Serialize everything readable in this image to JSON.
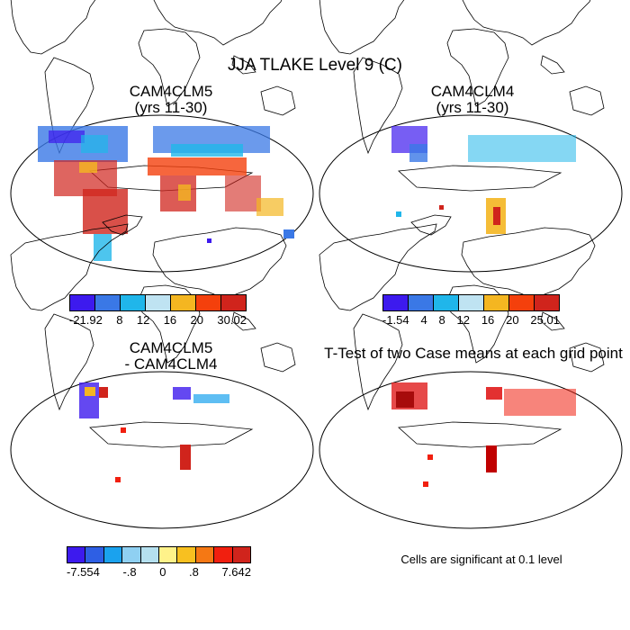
{
  "figure": {
    "title": "JJA TLAKE Level 9 (C)",
    "panels": [
      {
        "title_line1": "CAM4CLM5",
        "title_line2": "(yrs 11-30)"
      },
      {
        "title_line1": "CAM4CLM4",
        "title_line2": "(yrs 11-30)"
      },
      {
        "title_line1": "CAM4CLM5",
        "title_line2": "- CAM4CLM4"
      },
      {
        "title_line1": "T-Test of two Case means at each grid point",
        "title_line2": ""
      }
    ],
    "colorbars": [
      {
        "colors": [
          "#3d1aee",
          "#3a78e6",
          "#20b6ea",
          "#bfe3f2",
          "#f4b621",
          "#f4400c",
          "#d0241c"
        ],
        "labels": [
          "-21.92",
          "8",
          "12",
          "16",
          "20",
          "30.02"
        ]
      },
      {
        "colors": [
          "#3d1aee",
          "#3a78e6",
          "#20b6ea",
          "#bfe3f2",
          "#f4b621",
          "#f4400c",
          "#d0241c"
        ],
        "labels": [
          "-1.54",
          "4",
          "8",
          "12",
          "16",
          "20",
          "25.01"
        ]
      },
      {
        "colors": [
          "#3d1aee",
          "#2e5fe4",
          "#1aa2ee",
          "#8fd0f2",
          "#b5e0ef",
          "#fff28a",
          "#f8c020",
          "#f57814",
          "#f11f0f",
          "#d0241c"
        ],
        "labels": [
          "-7.554",
          "-.8",
          "0",
          ".8",
          "7.642"
        ]
      }
    ],
    "significance_note": "Cells are significant at 0.1 level"
  }
}
